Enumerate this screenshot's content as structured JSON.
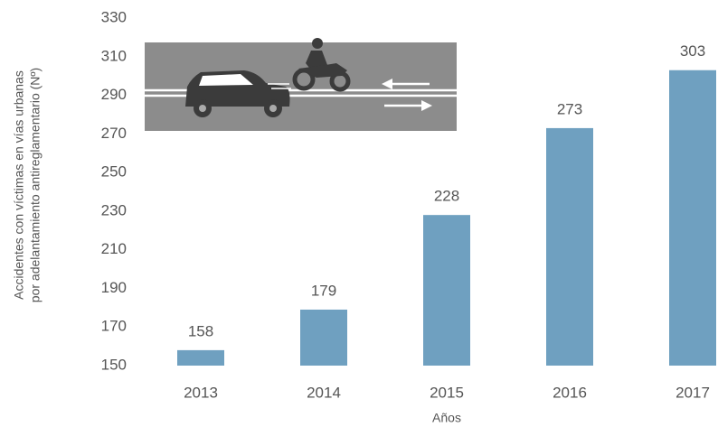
{
  "chart_data": {
    "type": "bar",
    "categories": [
      "2013",
      "2014",
      "2015",
      "2016",
      "2017"
    ],
    "values": [
      158,
      179,
      228,
      273,
      303
    ],
    "color": "#6fa0c0",
    "ylim": [
      150,
      330
    ],
    "yticks": [
      150,
      170,
      190,
      210,
      230,
      250,
      270,
      290,
      310,
      330
    ],
    "grid": false,
    "y_label": [
      "Accidentes con víctimas en vías urbanas",
      "por adelantamiento antireglamentario (Nº)"
    ],
    "x_label": "Años"
  }
}
